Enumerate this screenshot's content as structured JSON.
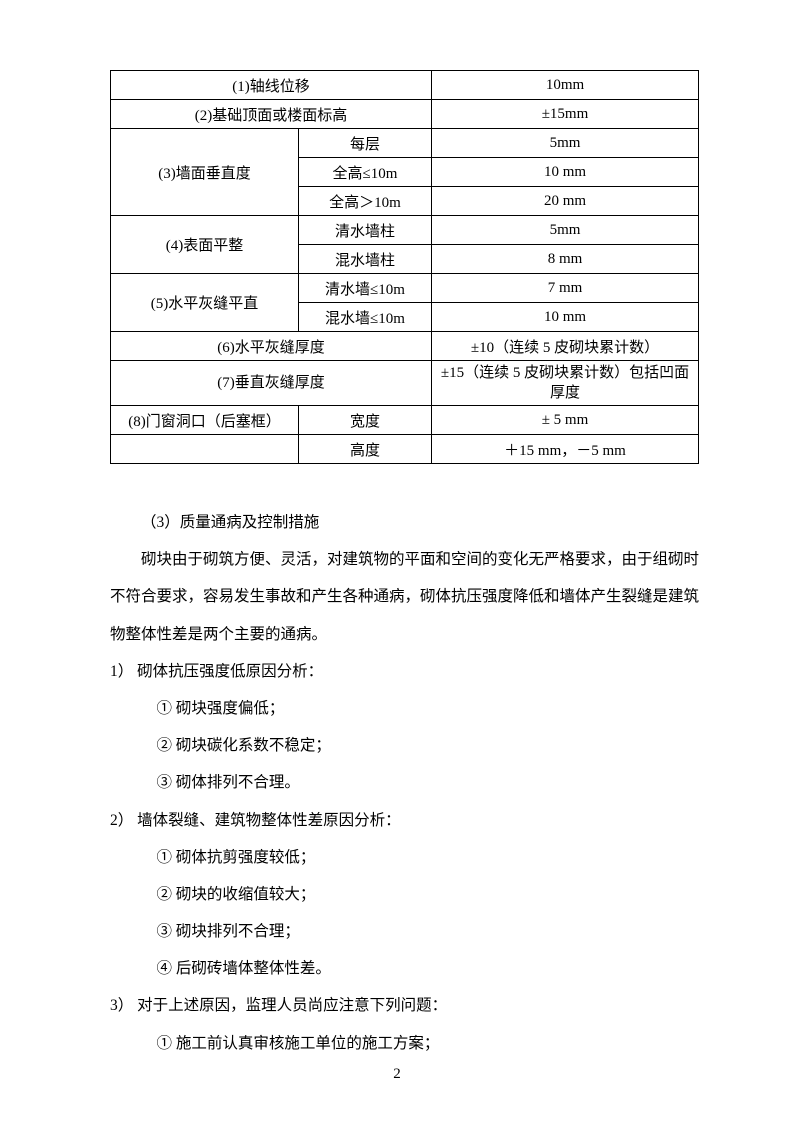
{
  "table": {
    "rows": [
      {
        "c1": "(1)轴线位移",
        "c2": null,
        "c3": "10mm",
        "span12": true
      },
      {
        "c1": "(2)基础顶面或楼面标高",
        "c2": null,
        "c3": "±15mm",
        "span12": true
      },
      {
        "c1": "(3)墙面垂直度",
        "c2": "每层",
        "c3": "5mm",
        "rowspan1": 3
      },
      {
        "c1": null,
        "c2": "全高≤10m",
        "c3": "10 mm"
      },
      {
        "c1": null,
        "c2": "全高＞10m",
        "c3": "20 mm"
      },
      {
        "c1": "(4)表面平整",
        "c2": "清水墙柱",
        "c3": "5mm",
        "rowspan1": 2
      },
      {
        "c1": null,
        "c2": "混水墙柱",
        "c3": "8 mm"
      },
      {
        "c1": "(5)水平灰缝平直",
        "c2": "清水墙≤10m",
        "c3": "7 mm",
        "rowspan1": 2
      },
      {
        "c1": null,
        "c2": "混水墙≤10m",
        "c3": "10 mm"
      },
      {
        "c1": "(6)水平灰缝厚度",
        "c2": null,
        "c3": "±10（连续 5 皮砌块累计数）",
        "span12": true
      },
      {
        "c1": "(7)垂直灰缝厚度",
        "c2": null,
        "c3": "±15（连续 5 皮砌块累计数）包括凹面厚度",
        "span12": true,
        "tall": true
      },
      {
        "c1": "(8)门窗洞口（后塞框）",
        "c2": "宽度",
        "c3": "± 5 mm"
      },
      {
        "c1": "",
        "c2": "高度",
        "c3": "＋15 mm，－5 mm"
      }
    ]
  },
  "text": {
    "heading": "（3）质量通病及控制措施",
    "para": "砌块由于砌筑方便、灵活，对建筑物的平面和空间的变化无严格要求，由于组砌时不符合要求，容易发生事故和产生各种通病，砌体抗压强度降低和墙体产生裂缝是建筑物整体性差是两个主要的通病。",
    "l1": "1） 砌体抗压强度低原因分析：",
    "l1_1": "① 砌块强度偏低；",
    "l1_2": "② 砌块碳化系数不稳定；",
    "l1_3": "③ 砌体排列不合理。",
    "l2": "2） 墙体裂缝、建筑物整体性差原因分析：",
    "l2_1": "① 砌体抗剪强度较低；",
    "l2_2": "② 砌块的收缩值较大；",
    "l2_3": "③ 砌块排列不合理；",
    "l2_4": "④ 后砌砖墙体整体性差。",
    "l3": "3） 对于上述原因，监理人员尚应注意下列问题：",
    "l3_1": "① 施工前认真审核施工单位的施工方案；"
  },
  "page_number": "2"
}
